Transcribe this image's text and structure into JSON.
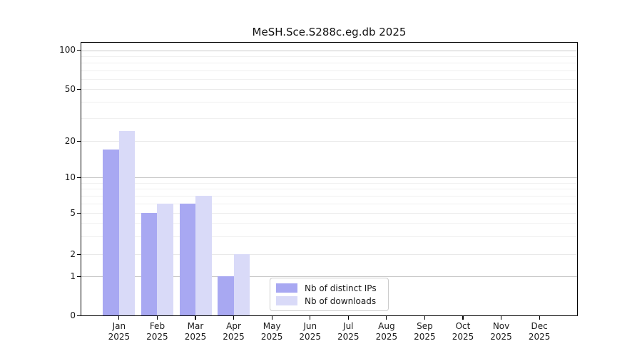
{
  "title": "MeSH.Sce.S288c.eg.db 2025",
  "chart_data": {
    "type": "bar",
    "title": "MeSH.Sce.S288c.eg.db 2025",
    "categories": [
      "Jan 2025",
      "Feb 2025",
      "Mar 2025",
      "Apr 2025",
      "May 2025",
      "Jun 2025",
      "Jul 2025",
      "Aug 2025",
      "Sep 2025",
      "Oct 2025",
      "Nov 2025",
      "Dec 2025"
    ],
    "series": [
      {
        "name": "Nb of distinct IPs",
        "color": "#a8a8f2",
        "values": [
          17,
          5,
          6,
          1,
          0,
          0,
          0,
          0,
          0,
          0,
          0,
          0
        ]
      },
      {
        "name": "Nb of downloads",
        "color": "#d9daf8",
        "values": [
          24,
          6,
          7,
          2,
          0,
          0,
          0,
          0,
          0,
          0,
          0,
          0
        ]
      }
    ],
    "xlabel": "",
    "ylabel": "",
    "yscale": "log-with-zero",
    "ylim": [
      0,
      100
    ],
    "yticks_labeled": [
      0,
      1,
      2,
      5,
      10,
      20,
      50,
      100
    ],
    "yticks_major": [
      1,
      10,
      100
    ],
    "yticks_mid": [
      2,
      5,
      20,
      50
    ],
    "yticks_minor": [
      3,
      4,
      6,
      7,
      8,
      9,
      30,
      40,
      60,
      70,
      80,
      90
    ],
    "grid": true,
    "legend_position": "inside-bottom-center"
  },
  "legend": {
    "items": [
      {
        "label": "Nb of distinct IPs",
        "color": "#a8a8f2"
      },
      {
        "label": "Nb of downloads",
        "color": "#d9daf8"
      }
    ]
  },
  "colors": {
    "background": "#ffffff",
    "spine": "#000000",
    "grid_major": "#c8c8c8",
    "grid_mid": "#e9e9e9",
    "grid_minor": "#f0f0f0",
    "text": "#1a1a1a",
    "legend_border": "#cccccc"
  }
}
